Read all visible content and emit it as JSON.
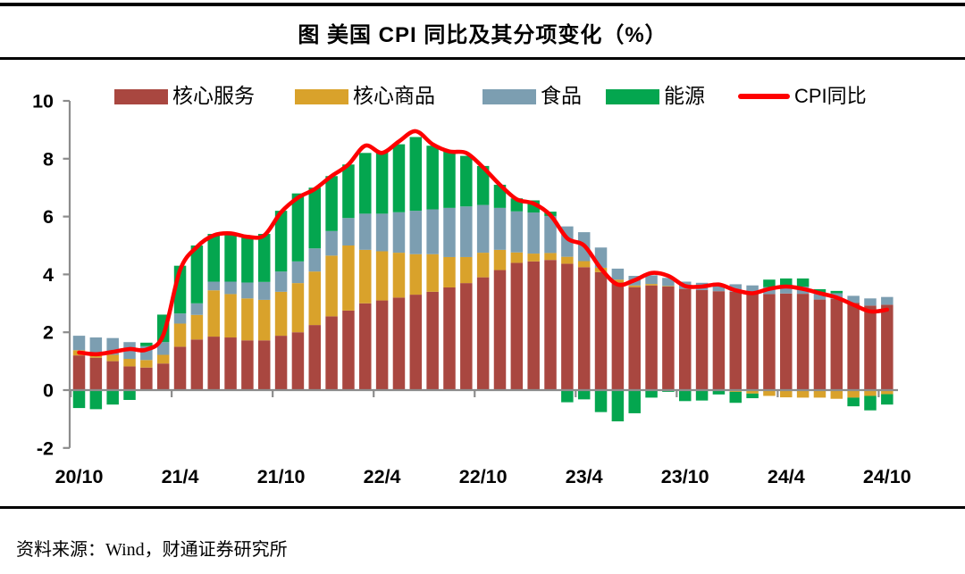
{
  "header": {
    "title": "图 美国 CPI 同比及其分项变化（%）"
  },
  "footer": {
    "source": "资料来源：Wind，财通证券研究所"
  },
  "chart_data": {
    "type": "bar",
    "subtype": "stacked-bar-with-line",
    "title": "图 美国 CPI 同比及其分项变化（%）",
    "xlabel": "",
    "ylabel": "",
    "ylim": [
      -2,
      10
    ],
    "y_ticks": [
      -2,
      0,
      2,
      4,
      6,
      8,
      10
    ],
    "grid": false,
    "legend_position": "top",
    "axis_color": "#8C8C8C",
    "categories": [
      "20/10",
      "20/11",
      "20/12",
      "21/1",
      "21/2",
      "21/3",
      "21/4",
      "21/5",
      "21/6",
      "21/7",
      "21/8",
      "21/9",
      "21/10",
      "21/11",
      "21/12",
      "22/1",
      "22/2",
      "22/3",
      "22/4",
      "22/5",
      "22/6",
      "22/7",
      "22/8",
      "22/9",
      "22/10",
      "22/11",
      "22/12",
      "23/1",
      "23/2",
      "23/3",
      "23/4",
      "23/5",
      "23/6",
      "23/7",
      "23/8",
      "23/9",
      "23/10",
      "23/11",
      "23/12",
      "24/1",
      "24/2",
      "24/3",
      "24/4",
      "24/5",
      "24/6",
      "24/7",
      "24/8",
      "24/9",
      "24/10"
    ],
    "x_tick_labels": [
      "20/10",
      "21/4",
      "21/10",
      "22/4",
      "22/10",
      "23/4",
      "23/10",
      "24/4",
      "24/10"
    ],
    "x_tick_indices": [
      0,
      6,
      12,
      18,
      24,
      30,
      36,
      42,
      48
    ],
    "series": [
      {
        "name": "核心服务",
        "color": "#A94740",
        "values": [
          1.2,
          1.12,
          1.0,
          0.82,
          0.78,
          0.92,
          1.5,
          1.75,
          1.85,
          1.82,
          1.72,
          1.72,
          1.88,
          2.0,
          2.25,
          2.55,
          2.75,
          3.0,
          3.1,
          3.2,
          3.3,
          3.4,
          3.55,
          3.7,
          3.9,
          4.15,
          4.4,
          4.45,
          4.5,
          4.37,
          4.25,
          4.08,
          3.72,
          3.56,
          3.62,
          3.58,
          3.5,
          3.46,
          3.42,
          3.4,
          3.38,
          3.32,
          3.34,
          3.33,
          3.13,
          3.15,
          3.02,
          2.92,
          2.95
        ]
      },
      {
        "name": "核心商品",
        "color": "#D9A22B",
        "values": [
          0.18,
          0.18,
          0.22,
          0.26,
          0.26,
          0.3,
          0.8,
          0.85,
          1.6,
          1.5,
          1.45,
          1.4,
          1.52,
          1.7,
          1.85,
          2.1,
          2.25,
          1.85,
          1.7,
          1.55,
          1.4,
          1.3,
          1.05,
          0.9,
          0.85,
          0.7,
          0.36,
          0.27,
          0.24,
          0.24,
          0.21,
          0.15,
          0.1,
          0.06,
          0.05,
          0.02,
          0.0,
          0.0,
          -0.03,
          -0.06,
          -0.12,
          -0.2,
          -0.25,
          -0.26,
          -0.26,
          -0.3,
          -0.26,
          -0.2,
          -0.14
        ]
      },
      {
        "name": "食品",
        "color": "#7C9EB1",
        "values": [
          0.5,
          0.52,
          0.58,
          0.58,
          0.48,
          0.44,
          0.35,
          0.4,
          0.3,
          0.43,
          0.55,
          0.62,
          0.7,
          0.75,
          0.8,
          0.85,
          0.95,
          1.25,
          1.3,
          1.4,
          1.5,
          1.55,
          1.7,
          1.75,
          1.65,
          1.45,
          1.42,
          1.42,
          1.28,
          1.05,
          1.0,
          0.7,
          0.38,
          0.33,
          0.3,
          0.28,
          0.25,
          0.25,
          0.25,
          0.26,
          0.24,
          0.24,
          0.25,
          0.25,
          0.2,
          0.2,
          0.24,
          0.25,
          0.27
        ]
      },
      {
        "name": "能源",
        "color": "#04A64F",
        "values": [
          -0.62,
          -0.66,
          -0.5,
          -0.34,
          0.12,
          0.95,
          1.65,
          2.0,
          1.65,
          1.67,
          1.58,
          1.66,
          2.1,
          2.35,
          2.1,
          1.9,
          1.85,
          2.1,
          2.15,
          2.35,
          2.55,
          2.2,
          2.0,
          1.75,
          1.35,
          0.8,
          0.45,
          0.42,
          0.15,
          -0.42,
          -0.32,
          -0.76,
          -1.08,
          -0.8,
          -0.26,
          -0.06,
          -0.38,
          -0.36,
          -0.12,
          -0.38,
          -0.16,
          0.26,
          0.27,
          0.28,
          0.16,
          0.08,
          -0.3,
          -0.5,
          -0.36
        ]
      }
    ],
    "line_series": {
      "name": "CPI同比",
      "color": "#FE0000",
      "values": [
        1.3,
        1.24,
        1.32,
        1.42,
        1.4,
        1.9,
        4.15,
        4.95,
        5.35,
        5.42,
        5.3,
        5.35,
        6.15,
        6.65,
        6.95,
        7.4,
        7.8,
        8.45,
        8.2,
        8.6,
        8.95,
        8.5,
        8.25,
        8.2,
        7.7,
        7.1,
        6.6,
        6.45,
        6.05,
        5.25,
        5.0,
        4.2,
        3.65,
        3.8,
        4.05,
        3.95,
        3.6,
        3.58,
        3.65,
        3.45,
        3.35,
        3.5,
        3.58,
        3.5,
        3.35,
        3.2,
        2.95,
        2.72,
        2.78
      ]
    }
  }
}
